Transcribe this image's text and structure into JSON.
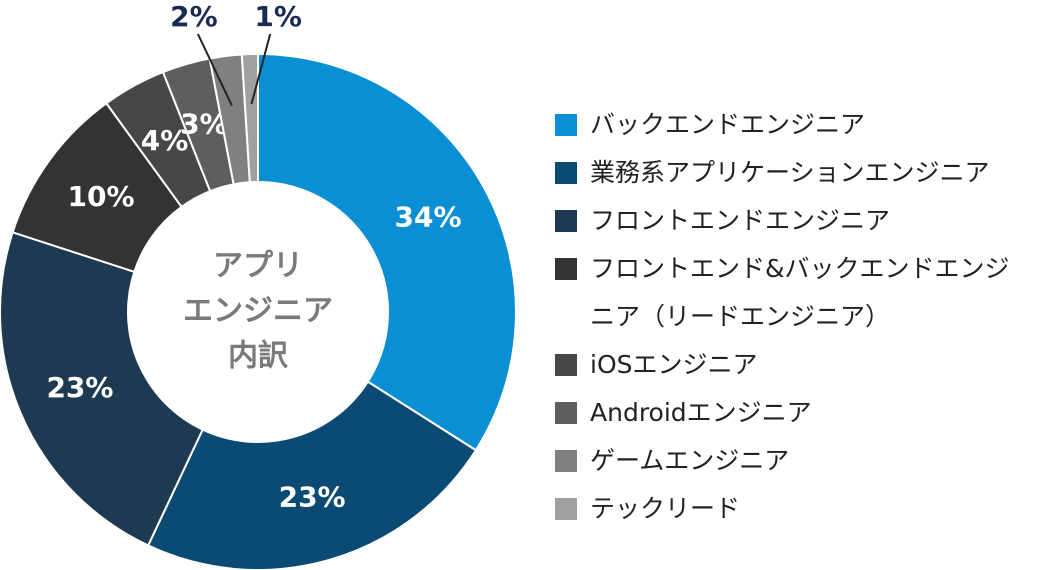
{
  "chart_data": {
    "type": "donut",
    "center_label": [
      "アプリ",
      "エンジニア",
      "内訳"
    ],
    "categories": [
      "バックエンドエンジニア",
      "業務系アプリケーションエンジニア",
      "フロントエンドエンジニア",
      "フロントエンド&バックエンドエンジニア（リードエンジニア）",
      "iOSエンジニア",
      "Androidエンジニア",
      "ゲームエンジニア",
      "テックリード"
    ],
    "values": [
      34,
      23,
      23,
      10,
      4,
      3,
      2,
      1
    ],
    "value_labels": [
      "34%",
      "23%",
      "23%",
      "10%",
      "4%",
      "3%",
      "2%",
      "1%"
    ],
    "colors": [
      "#0a8fd4",
      "#0a4a73",
      "#1e3a52",
      "#333333",
      "#474747",
      "#5e5e5e",
      "#808080",
      "#a0a0a0"
    ],
    "legend": "right"
  }
}
